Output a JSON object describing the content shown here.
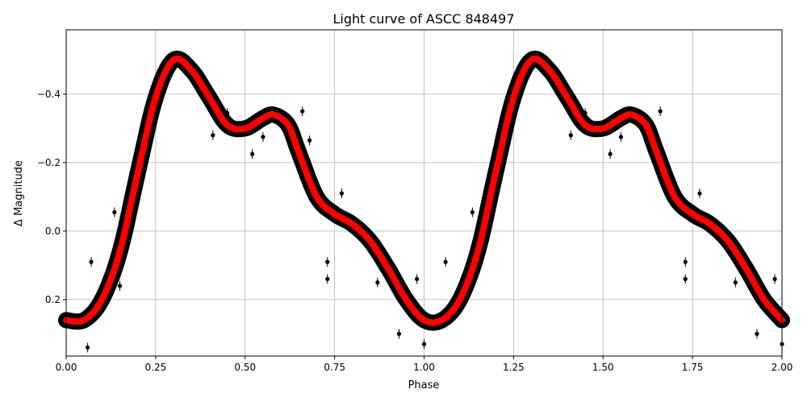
{
  "chart_data": {
    "type": "scatter",
    "title": "Light curve of ASCC 848497",
    "xlabel": "Phase",
    "ylabel": "Δ Magnitude",
    "xlim": [
      0,
      2
    ],
    "ylim": [
      0.365,
      -0.588
    ],
    "y_inverted": true,
    "grid": true,
    "xticks": [
      0,
      0.25,
      0.5,
      0.75,
      1.0,
      1.25,
      1.5,
      1.75,
      2.0
    ],
    "xtick_labels": [
      "0.00",
      "0.25",
      "0.50",
      "0.75",
      "1.00",
      "1.25",
      "1.50",
      "1.75",
      "2.00"
    ],
    "yticks": [
      -0.4,
      -0.2,
      0.0,
      0.2
    ],
    "ytick_labels": [
      "−0.4",
      "−0.2",
      "0.0",
      "0.2"
    ],
    "colors": {
      "points": "#000000",
      "model": "#ff0000",
      "grid": "#b0b0b0"
    },
    "model_curve": {
      "phase": [
        0.0,
        0.05,
        0.1,
        0.15,
        0.2,
        0.25,
        0.3,
        0.35,
        0.4,
        0.45,
        0.5,
        0.55,
        0.58,
        0.62,
        0.65,
        0.7,
        0.75,
        0.8,
        0.85,
        0.9,
        0.95,
        1.0
      ],
      "magnitude": [
        0.26,
        0.26,
        0.2,
        0.06,
        -0.17,
        -0.39,
        -0.5,
        -0.47,
        -0.39,
        -0.31,
        -0.3,
        -0.33,
        -0.34,
        -0.31,
        -0.23,
        -0.1,
        -0.05,
        -0.02,
        0.03,
        0.11,
        0.2,
        0.26
      ],
      "repeats_every": 1.0
    },
    "outlier_points": [
      [
        0.07,
        0.09
      ],
      [
        0.135,
        -0.055
      ],
      [
        0.15,
        0.16
      ],
      [
        0.06,
        0.34
      ],
      [
        0.41,
        -0.28
      ],
      [
        0.45,
        -0.345
      ],
      [
        0.52,
        -0.225
      ],
      [
        0.55,
        -0.275
      ],
      [
        0.66,
        -0.35
      ],
      [
        0.68,
        -0.265
      ],
      [
        0.73,
        0.09
      ],
      [
        0.73,
        0.14
      ],
      [
        0.77,
        -0.11
      ],
      [
        0.87,
        0.15
      ],
      [
        0.93,
        0.3
      ],
      [
        0.98,
        0.14
      ],
      [
        1.0,
        0.33
      ],
      [
        1.06,
        0.09
      ],
      [
        1.135,
        -0.055
      ],
      [
        1.41,
        -0.28
      ],
      [
        1.45,
        -0.345
      ],
      [
        1.52,
        -0.225
      ],
      [
        1.55,
        -0.275
      ],
      [
        1.66,
        -0.35
      ],
      [
        1.73,
        0.09
      ],
      [
        1.73,
        0.14
      ],
      [
        1.77,
        -0.11
      ],
      [
        1.87,
        0.15
      ],
      [
        1.93,
        0.3
      ],
      [
        1.98,
        0.14
      ],
      [
        2.0,
        0.33
      ]
    ]
  }
}
